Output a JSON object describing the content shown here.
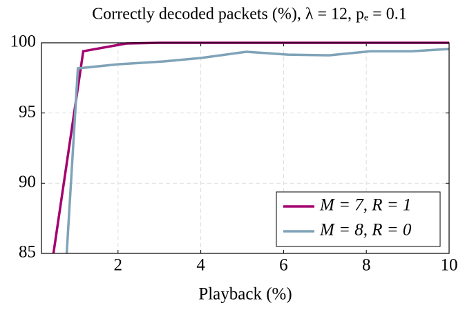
{
  "chart_data": {
    "type": "line",
    "title": "Correctly decoded packets (%), λ = 12, pₑ = 0.1",
    "x_label": "Playback (%)",
    "xlim": [
      0.15,
      10
    ],
    "xticks": [
      2,
      4,
      6,
      8,
      10
    ],
    "ylim": [
      85,
      100
    ],
    "yticks": [
      85,
      90,
      95,
      100
    ],
    "grid": true,
    "legend": "lower right",
    "series": [
      {
        "name": "M = 7, R = 1",
        "color": "#a3006f",
        "x": [
          0.44,
          1.16,
          2.2,
          3,
          4,
          5,
          6,
          7,
          8,
          9,
          10
        ],
        "values": [
          85,
          99.4,
          99.95,
          100,
          100,
          100,
          100,
          100,
          100,
          100,
          100
        ]
      },
      {
        "name": "M = 8, R = 0",
        "color": "#7fa3b8",
        "x": [
          0.76,
          1.03,
          2,
          3.1,
          4,
          5.1,
          6.1,
          7.1,
          8.1,
          9.1,
          10
        ],
        "values": [
          85,
          98.18,
          98.47,
          98.67,
          98.92,
          99.36,
          99.16,
          99.11,
          99.4,
          99.4,
          99.56
        ]
      }
    ]
  }
}
